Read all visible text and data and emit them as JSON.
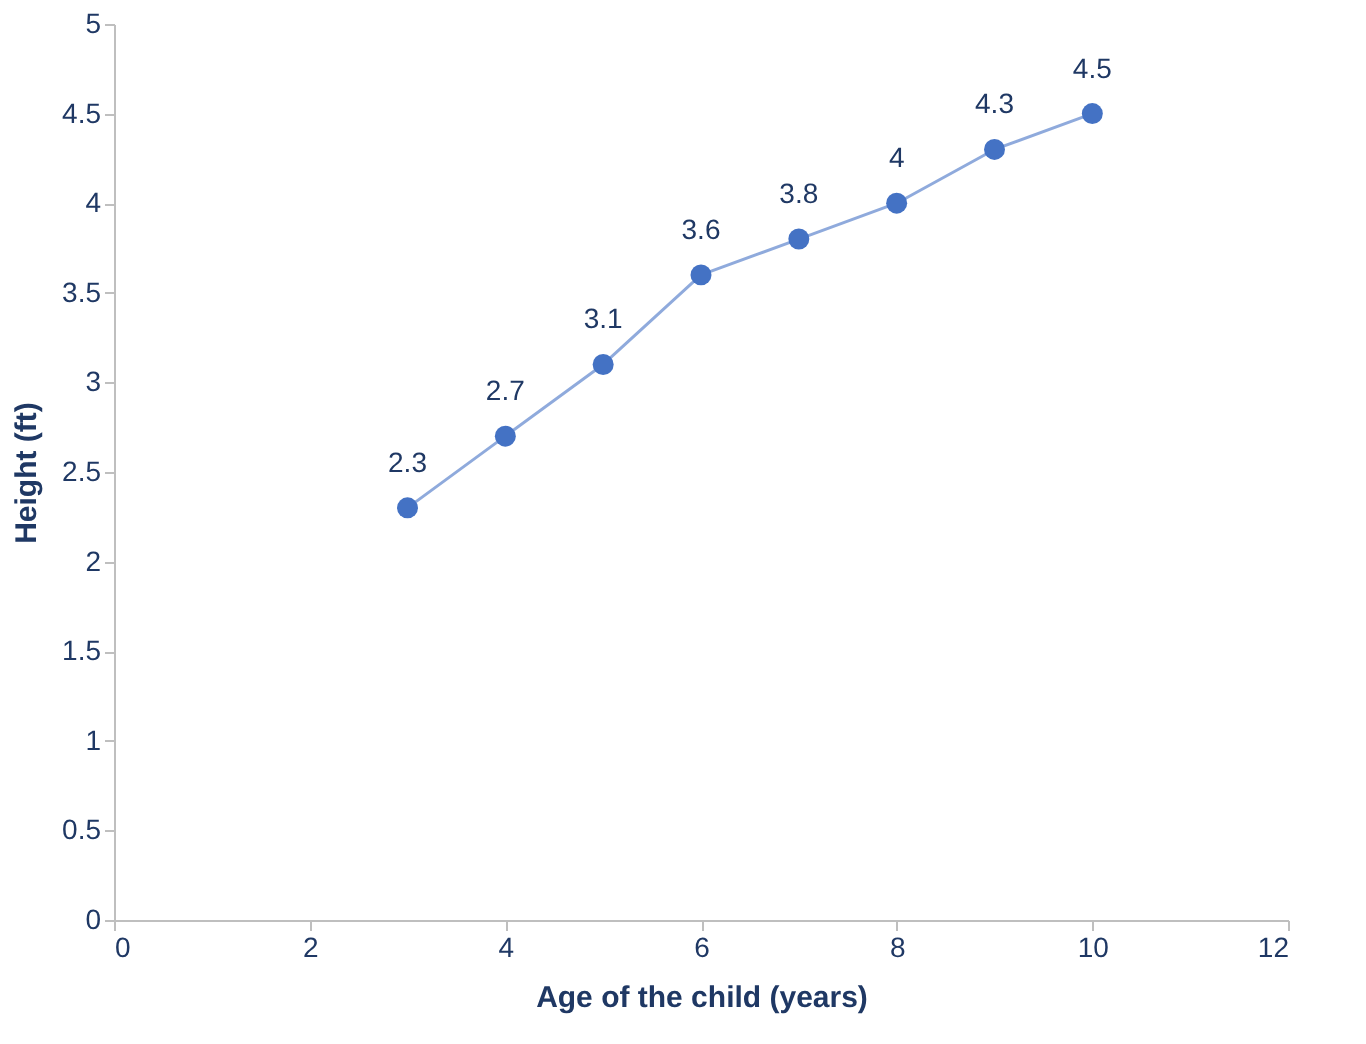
{
  "chart_data": {
    "type": "line",
    "xlabel": "Age of the child (years)",
    "ylabel": "Height (ft)",
    "x": [
      3,
      4,
      5,
      6,
      7,
      8,
      9,
      10
    ],
    "series": [
      {
        "color": "#4472c4",
        "values": [
          2.3,
          2.7,
          3.1,
          3.6,
          3.8,
          4,
          4.3,
          4.5
        ]
      }
    ],
    "xlim": [
      0,
      12
    ],
    "xticks": [
      0,
      2,
      4,
      6,
      8,
      10,
      12
    ],
    "ylim": [
      0,
      5
    ],
    "yticks": [
      0,
      0.5,
      1,
      1.5,
      2,
      2.5,
      3,
      3.5,
      4,
      4.5,
      5
    ],
    "grid": false,
    "marker": "circle",
    "line_style": "solid",
    "data_labels": true
  }
}
